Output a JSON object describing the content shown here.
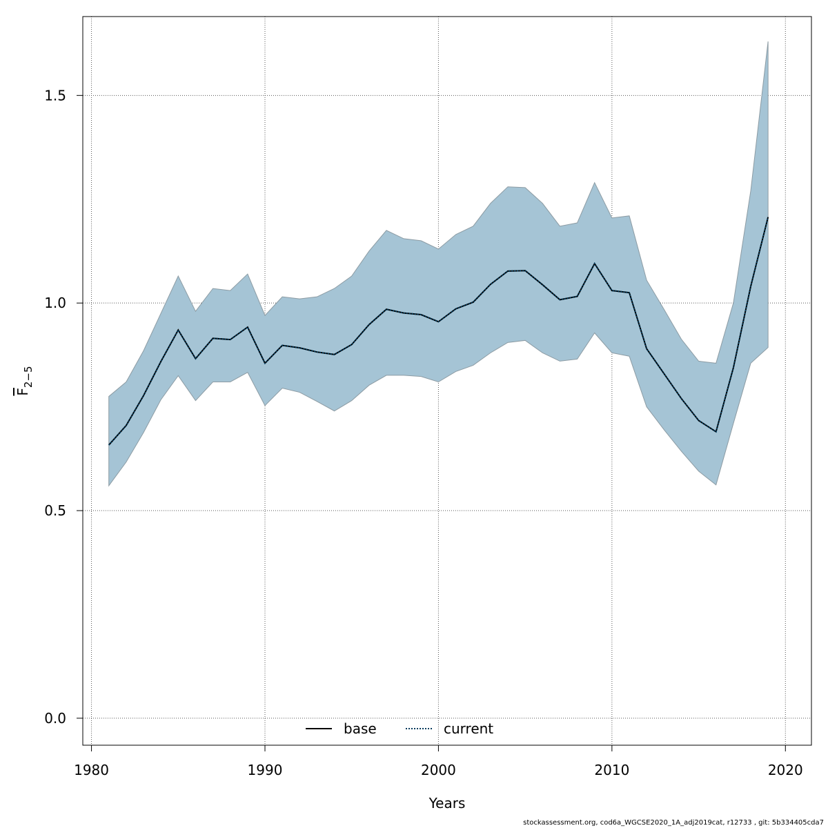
{
  "chart_data": {
    "type": "area",
    "xlabel": "Years",
    "ylabel": {
      "base": "F",
      "subscript": "2−5"
    },
    "xlim": [
      1979.5,
      2021.5
    ],
    "ylim": [
      -0.065,
      1.69
    ],
    "xticks": [
      1980,
      1990,
      2000,
      2010,
      2020
    ],
    "xtick_labels": [
      "1980",
      "1990",
      "2000",
      "2010",
      "2020"
    ],
    "yticks": [
      0.0,
      0.5,
      1.0,
      1.5
    ],
    "ytick_labels": [
      "0.0",
      "0.5",
      "1.0",
      "1.5"
    ],
    "grid": true,
    "legend_position": "bottom-center",
    "colors": {
      "band_fill": "#a5c4d5",
      "band_stroke": "#8c9ba3",
      "current_line": "#003a5c",
      "grid": "#555555"
    },
    "x": [
      1981,
      1982,
      1983,
      1984,
      1985,
      1986,
      1987,
      1988,
      1989,
      1990,
      1991,
      1992,
      1993,
      1994,
      1995,
      1996,
      1997,
      1998,
      1999,
      2000,
      2001,
      2002,
      2003,
      2004,
      2005,
      2006,
      2007,
      2008,
      2009,
      2010,
      2011,
      2012,
      2013,
      2014,
      2015,
      2016,
      2017,
      2018,
      2019
    ],
    "band": {
      "upper": [
        0.775,
        0.81,
        0.885,
        0.975,
        1.065,
        0.98,
        1.035,
        1.03,
        1.07,
        0.97,
        1.015,
        1.01,
        1.015,
        1.035,
        1.065,
        1.125,
        1.175,
        1.155,
        1.15,
        1.13,
        1.165,
        1.185,
        1.24,
        1.28,
        1.278,
        1.24,
        1.185,
        1.193,
        1.29,
        1.205,
        1.21,
        1.055,
        0.985,
        0.913,
        0.86,
        0.855,
        1.0,
        1.27,
        1.63
      ],
      "lower": [
        0.56,
        0.617,
        0.688,
        0.767,
        0.825,
        0.765,
        0.81,
        0.81,
        0.833,
        0.753,
        0.795,
        0.785,
        0.763,
        0.74,
        0.765,
        0.802,
        0.826,
        0.826,
        0.823,
        0.81,
        0.835,
        0.85,
        0.88,
        0.905,
        0.91,
        0.88,
        0.86,
        0.865,
        0.928,
        0.88,
        0.872,
        0.75,
        0.695,
        0.643,
        0.595,
        0.562,
        0.71,
        0.855,
        0.893
      ]
    },
    "series": [
      {
        "name": "base",
        "style": "solid",
        "values": [
          0.658,
          0.705,
          0.777,
          0.859,
          0.935,
          0.866,
          0.915,
          0.912,
          0.942,
          0.855,
          0.898,
          0.892,
          0.882,
          0.876,
          0.9,
          0.948,
          0.985,
          0.976,
          0.972,
          0.955,
          0.986,
          1.002,
          1.045,
          1.077,
          1.078,
          1.044,
          1.008,
          1.016,
          1.095,
          1.03,
          1.025,
          0.89,
          0.83,
          0.77,
          0.717,
          0.69,
          0.844,
          1.04,
          1.207
        ]
      },
      {
        "name": "current",
        "style": "dotted",
        "values": [
          0.658,
          0.705,
          0.777,
          0.859,
          0.935,
          0.866,
          0.915,
          0.912,
          0.942,
          0.855,
          0.898,
          0.892,
          0.882,
          0.876,
          0.9,
          0.948,
          0.985,
          0.976,
          0.972,
          0.955,
          0.986,
          1.002,
          1.045,
          1.077,
          1.078,
          1.044,
          1.008,
          1.016,
          1.095,
          1.03,
          1.025,
          0.89,
          0.83,
          0.77,
          0.717,
          0.69,
          0.844,
          1.04,
          1.207
        ]
      }
    ]
  },
  "legend": {
    "items": [
      "base",
      "current"
    ]
  },
  "footer": "stockassessment.org, cod6a_WGCSE2020_1A_adj2019cat, r12733 , git: 5b334405cda7"
}
